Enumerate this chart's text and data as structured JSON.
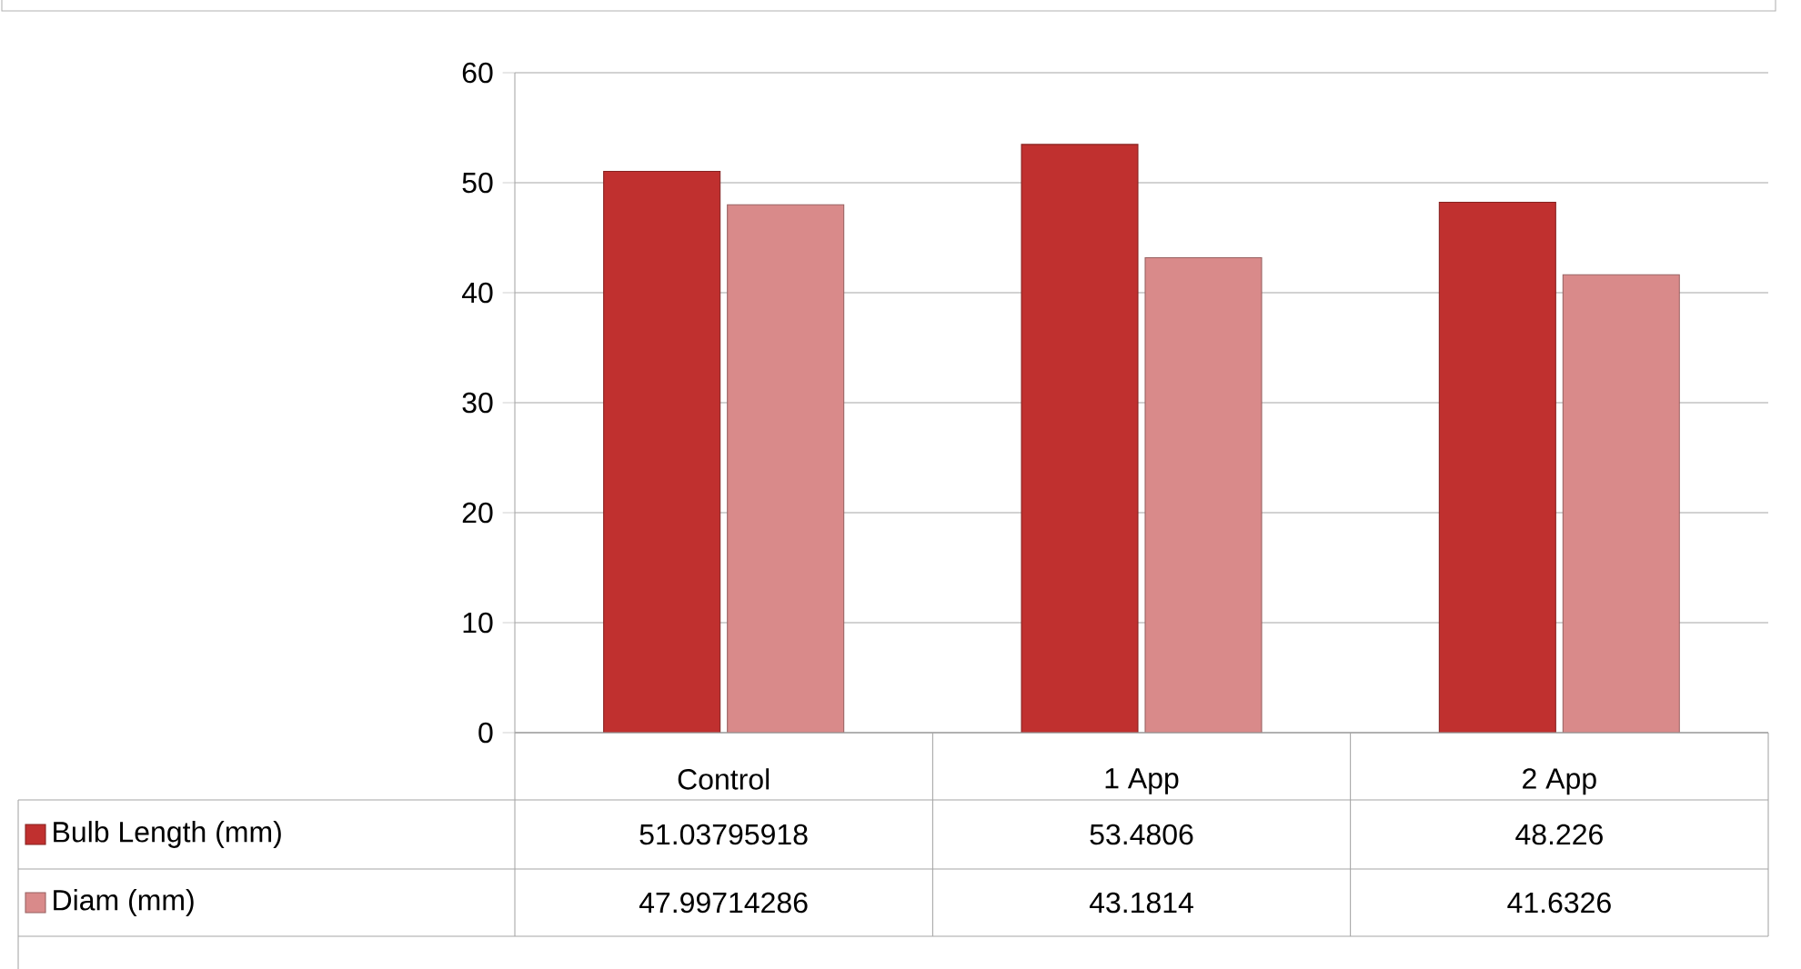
{
  "chart_data": {
    "type": "bar",
    "categories": [
      "Control",
      "1 App",
      "2 App"
    ],
    "series": [
      {
        "name": "Bulb Length (mm)",
        "color": "#c0302f",
        "values": [
          51.03795918,
          53.4806,
          48.226
        ],
        "value_labels": [
          "51.03795918",
          "53.4806",
          "48.226"
        ]
      },
      {
        "name": "Diam (mm)",
        "color": "#d98a8a",
        "values": [
          47.99714286,
          43.1814,
          41.6326
        ],
        "value_labels": [
          "47.99714286",
          "43.1814",
          "41.6326"
        ]
      }
    ],
    "ylim": [
      0,
      60
    ],
    "yticks": [
      0,
      10,
      20,
      30,
      40,
      50,
      60
    ],
    "grid": "y",
    "legend": "bottom left"
  }
}
